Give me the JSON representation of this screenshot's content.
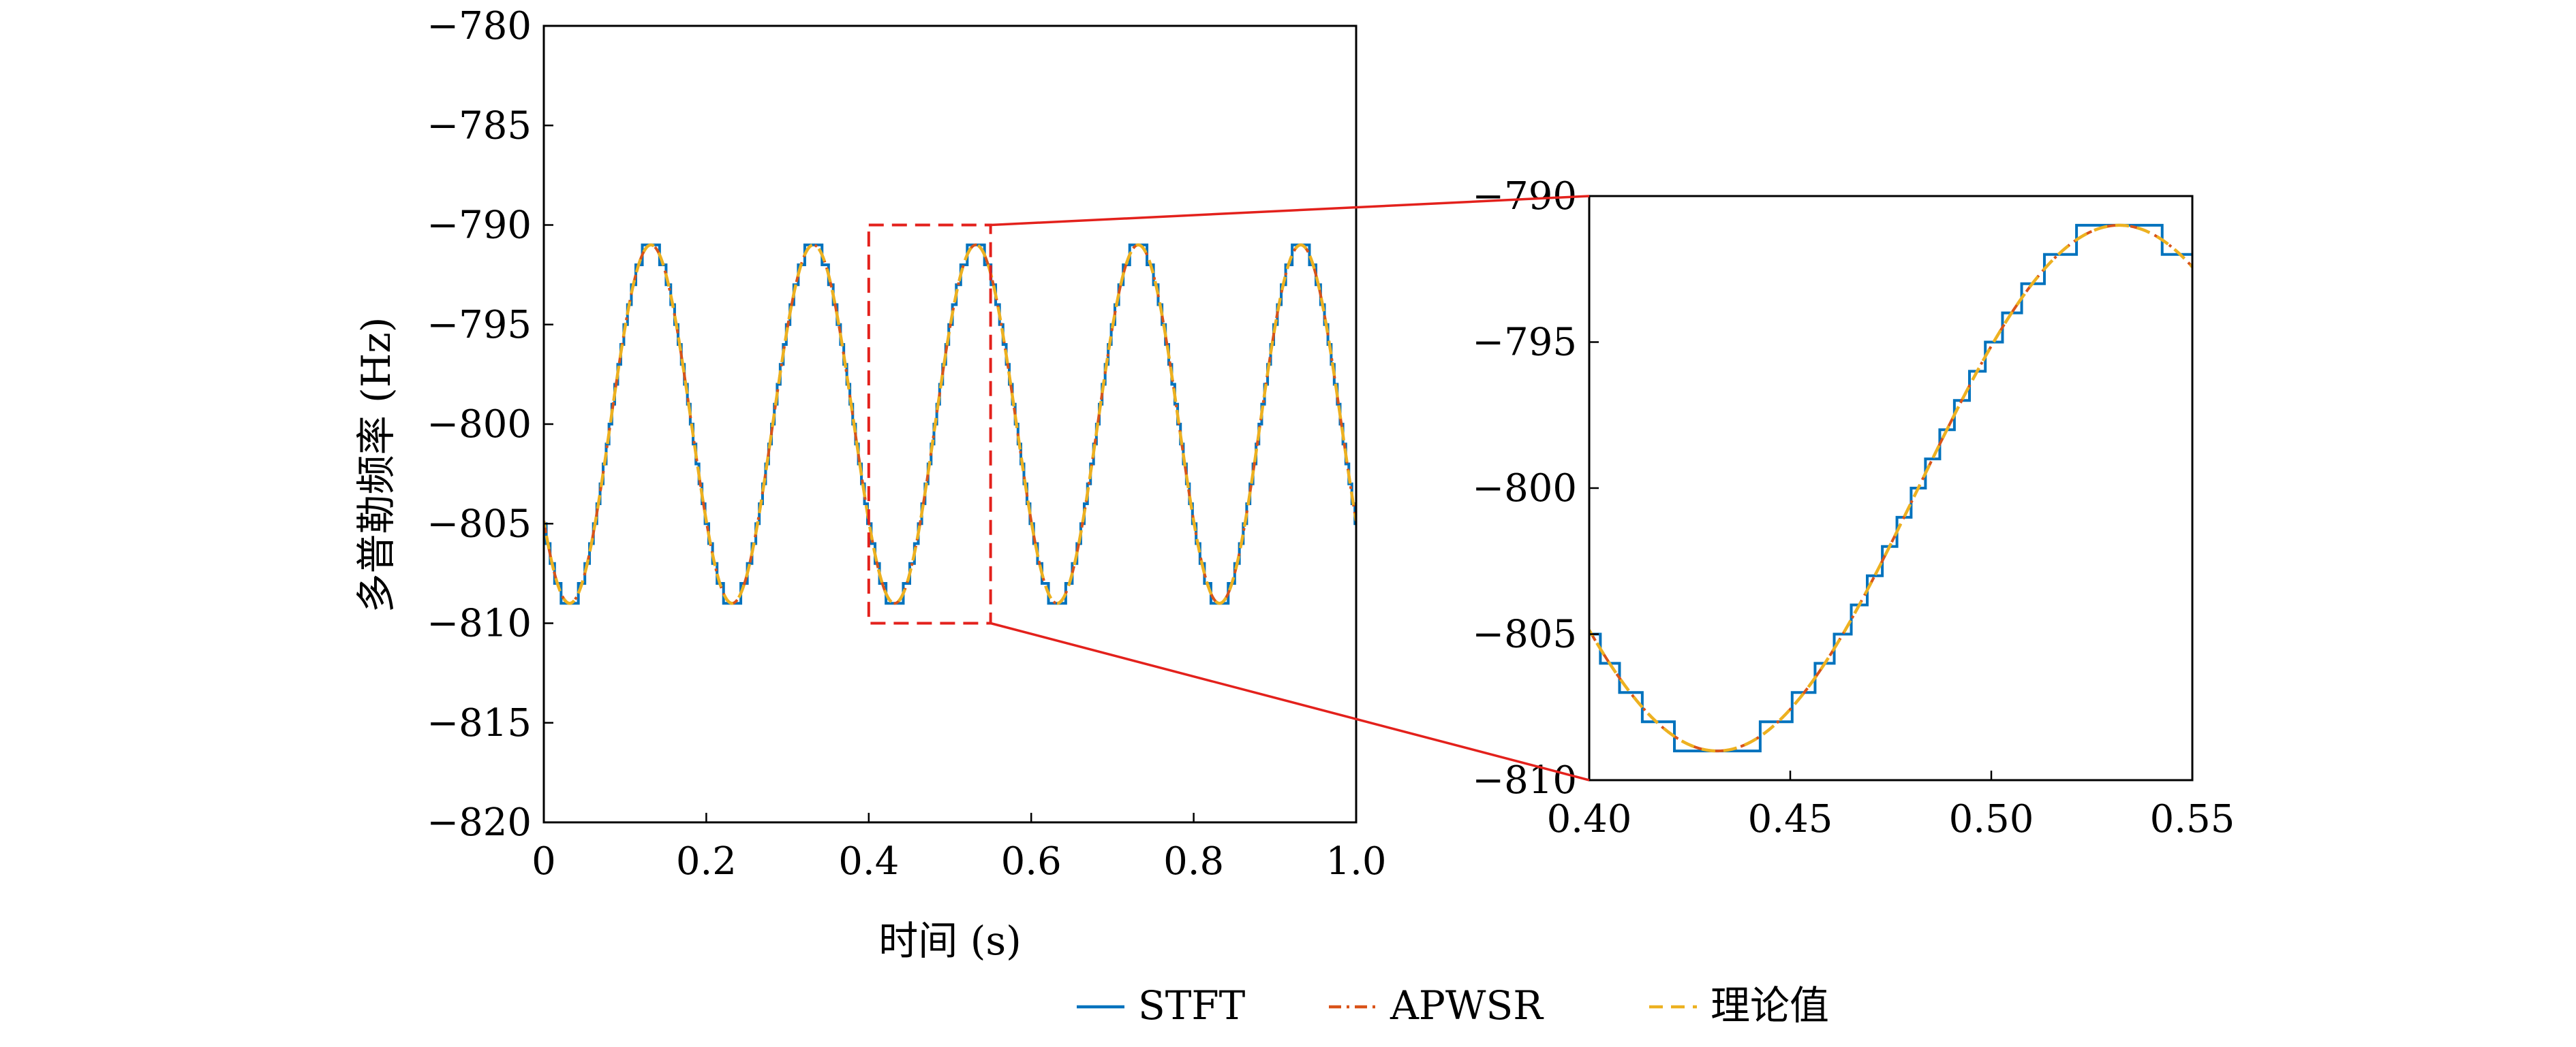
{
  "chart_data": [
    {
      "type": "line",
      "panel": "main",
      "xlabel": "时间 (s)",
      "ylabel": "多普勒频率 (Hz)",
      "xlim": [
        0,
        1.0
      ],
      "ylim": [
        -820,
        -780
      ],
      "xticks": [
        0,
        0.2,
        0.4,
        0.6,
        0.8,
        1.0
      ],
      "xtick_labels": [
        "0",
        "0.2",
        "0.4",
        "0.6",
        "0.8",
        "1.0"
      ],
      "yticks": [
        -780,
        -785,
        -790,
        -795,
        -800,
        -805,
        -810,
        -815,
        -820
      ],
      "ytick_labels": [
        "−780",
        "−785",
        "−790",
        "−795",
        "−800",
        "−805",
        "−810",
        "−815",
        "−820"
      ],
      "grid": false,
      "signal": {
        "center": -800,
        "amplitude": 9,
        "frequency_hz": 5,
        "phase_rad": -2.5708,
        "stft_step_hz": 1
      },
      "series": [
        {
          "name": "STFT",
          "style": "solid",
          "color": "#0072BD"
        },
        {
          "name": "APWSR",
          "style": "dashdot",
          "color": "#D95319"
        },
        {
          "name": "理论值",
          "style": "dashed",
          "color": "#EDB120"
        }
      ],
      "zoom_region": {
        "x": [
          0.4,
          0.55
        ],
        "y": [
          -810,
          -790
        ],
        "color": "#E3211C"
      }
    },
    {
      "type": "line",
      "panel": "inset",
      "xlim": [
        0.4,
        0.55
      ],
      "ylim": [
        -810,
        -790
      ],
      "xticks": [
        0.4,
        0.45,
        0.5,
        0.55
      ],
      "xtick_labels": [
        "0.40",
        "0.45",
        "0.50",
        "0.55"
      ],
      "yticks": [
        -790,
        -795,
        -800,
        -805,
        -810
      ],
      "ytick_labels": [
        "−790",
        "−795",
        "−800",
        "−805",
        "−810"
      ],
      "grid": false
    }
  ],
  "legend": {
    "placement": "bottom-center",
    "items": [
      {
        "label": "STFT",
        "color": "#0072BD",
        "style": "solid"
      },
      {
        "label": "APWSR",
        "color": "#D95319",
        "style": "dashdot"
      },
      {
        "label": "理论值",
        "color": "#EDB120",
        "style": "dashed"
      }
    ]
  }
}
